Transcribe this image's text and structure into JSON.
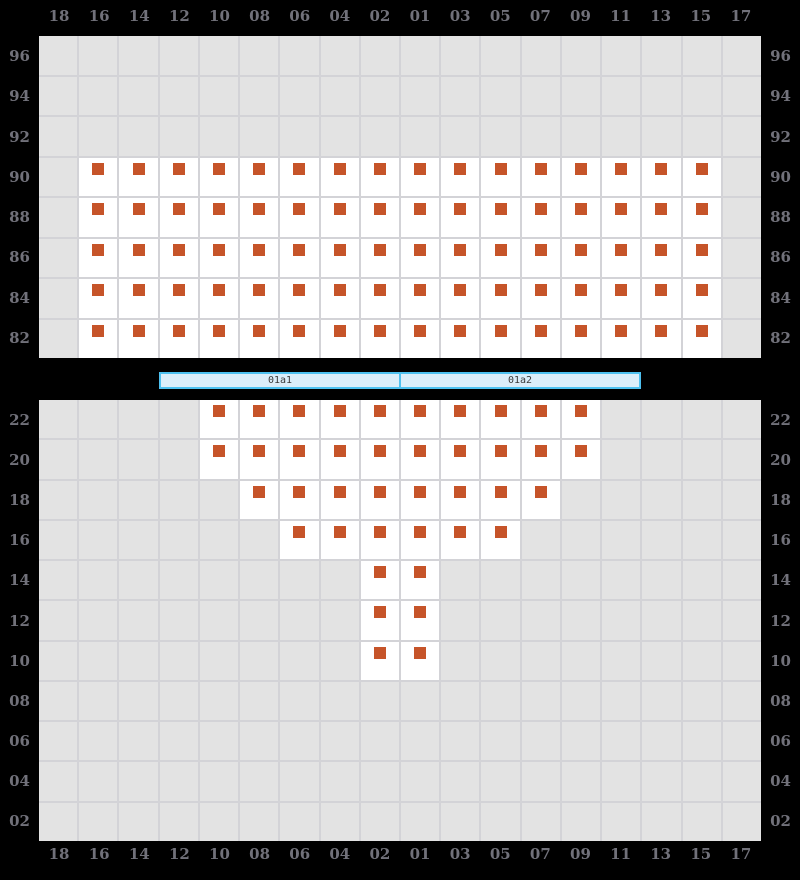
{
  "bay_plan": {
    "columns": [
      "18",
      "16",
      "14",
      "12",
      "10",
      "08",
      "06",
      "04",
      "02",
      "01",
      "03",
      "05",
      "07",
      "09",
      "11",
      "13",
      "15",
      "17"
    ],
    "deck": {
      "rows": [
        {
          "tier": "96",
          "occupied": []
        },
        {
          "tier": "94",
          "occupied": []
        },
        {
          "tier": "92",
          "occupied": []
        },
        {
          "tier": "90",
          "occupied": [
            1,
            2,
            3,
            4,
            5,
            6,
            7,
            8,
            9,
            10,
            11,
            12,
            13,
            14,
            15,
            16
          ]
        },
        {
          "tier": "88",
          "occupied": [
            1,
            2,
            3,
            4,
            5,
            6,
            7,
            8,
            9,
            10,
            11,
            12,
            13,
            14,
            15,
            16
          ]
        },
        {
          "tier": "86",
          "occupied": [
            1,
            2,
            3,
            4,
            5,
            6,
            7,
            8,
            9,
            10,
            11,
            12,
            13,
            14,
            15,
            16
          ]
        },
        {
          "tier": "84",
          "occupied": [
            1,
            2,
            3,
            4,
            5,
            6,
            7,
            8,
            9,
            10,
            11,
            12,
            13,
            14,
            15,
            16
          ]
        },
        {
          "tier": "82",
          "occupied": [
            1,
            2,
            3,
            4,
            5,
            6,
            7,
            8,
            9,
            10,
            11,
            12,
            13,
            14,
            15,
            16
          ]
        }
      ]
    },
    "hold": {
      "rows": [
        {
          "tier": "22",
          "occupied": [
            4,
            5,
            6,
            7,
            8,
            9,
            10,
            11,
            12,
            13
          ]
        },
        {
          "tier": "20",
          "occupied": [
            4,
            5,
            6,
            7,
            8,
            9,
            10,
            11,
            12,
            13
          ]
        },
        {
          "tier": "18",
          "occupied": [
            5,
            6,
            7,
            8,
            9,
            10,
            11,
            12
          ]
        },
        {
          "tier": "16",
          "occupied": [
            6,
            7,
            8,
            9,
            10,
            11
          ]
        },
        {
          "tier": "14",
          "occupied": [
            8,
            9
          ]
        },
        {
          "tier": "12",
          "occupied": [
            8,
            9
          ]
        },
        {
          "tier": "10",
          "occupied": [
            8,
            9
          ]
        },
        {
          "tier": "08",
          "occupied": []
        },
        {
          "tier": "06",
          "occupied": []
        },
        {
          "tier": "04",
          "occupied": []
        },
        {
          "tier": "02",
          "occupied": []
        }
      ]
    },
    "hatch_covers": [
      "01a1",
      "01a2"
    ],
    "colors": {
      "bg": "#000000",
      "empty_cell": "#e3e3e3",
      "gridline": "#d3d3d7",
      "occupied_cell": "#ffffff",
      "marker": "#c65429",
      "label": "#71717a",
      "hatch_fill": "#dbeefa",
      "hatch_border": "#4ec1f0",
      "hatch_text": "#3b3b3b"
    }
  }
}
